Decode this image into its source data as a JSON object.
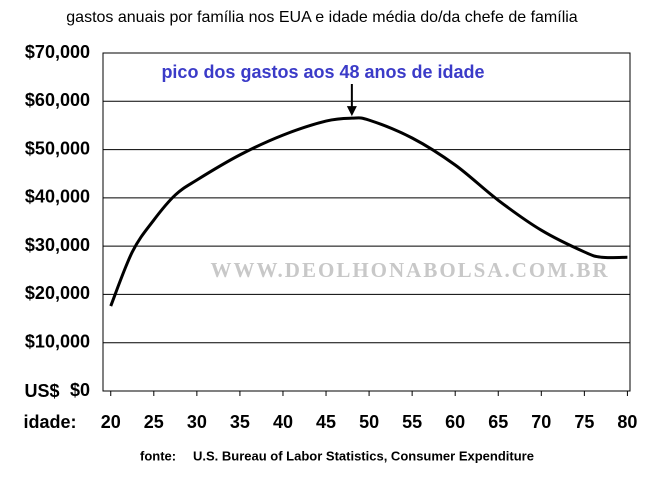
{
  "chart_data": {
    "type": "line",
    "title": "gastos anuais por família nos EUA e idade média do/da chefe de família",
    "annotation": "pico dos gastos aos 48 anos de idade",
    "watermark": "WWW.DEOLHONABOLSA.COM.BR",
    "y_unit_label": "US$",
    "x_label": "idade:",
    "source_label": "fonte:",
    "source": "U.S. Bureau of Labor Statistics, Consumer Expenditure",
    "x": [
      20,
      22.5,
      25,
      27.5,
      30,
      35,
      40,
      45,
      48,
      50,
      55,
      60,
      65,
      70,
      75,
      77,
      80
    ],
    "values": [
      17600,
      28800,
      35400,
      40600,
      43700,
      48900,
      53000,
      55900,
      56500,
      56100,
      52400,
      46800,
      39500,
      33300,
      28800,
      27700,
      27700
    ],
    "color": "#000000",
    "annotation_color": "#3b3bc8",
    "xlim": [
      19.1,
      80.3
    ],
    "ylim": [
      0,
      70000
    ],
    "xticks": [
      20,
      25,
      30,
      35,
      40,
      45,
      50,
      55,
      60,
      65,
      70,
      75,
      80
    ],
    "yticks": [
      {
        "value": 0,
        "label": "$0"
      },
      {
        "value": 10000,
        "label": "$10,000"
      },
      {
        "value": 20000,
        "label": "$20,000"
      },
      {
        "value": 30000,
        "label": "$30,000"
      },
      {
        "value": 40000,
        "label": "$40,000"
      },
      {
        "value": 50000,
        "label": "$50,000"
      },
      {
        "value": 60000,
        "label": "$60,000"
      },
      {
        "value": 70000,
        "label": "$70,000"
      }
    ],
    "grid": true
  }
}
